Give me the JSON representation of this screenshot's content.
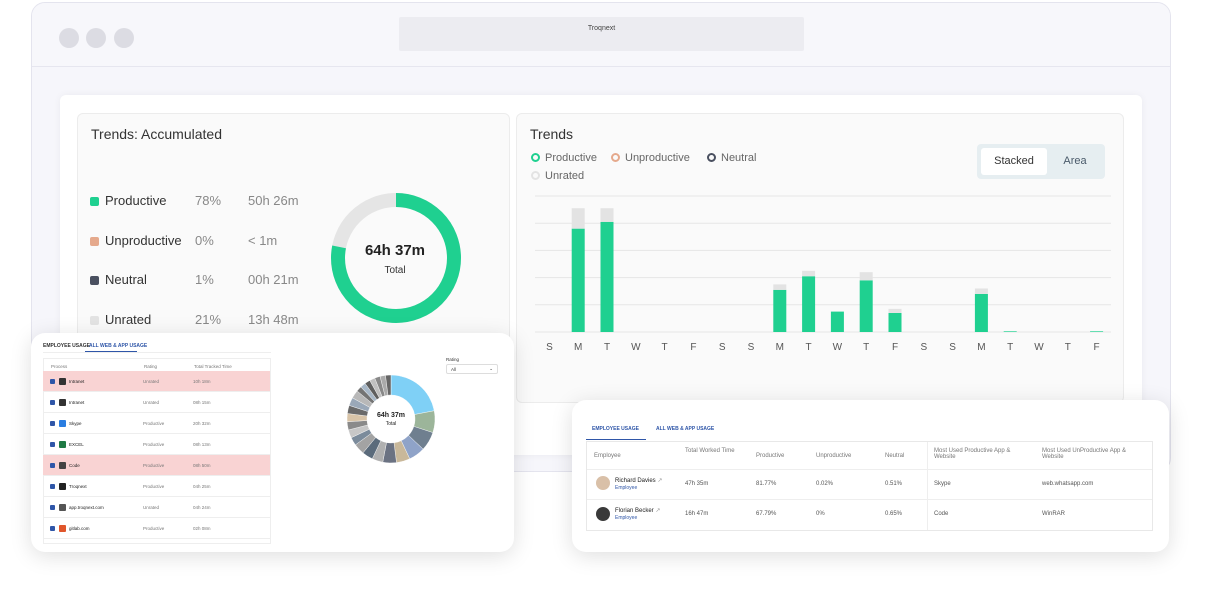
{
  "browser": {
    "title": "Troqnext"
  },
  "accumulated": {
    "title": "Trends: Accumulated",
    "rows": [
      {
        "name": "Productive",
        "pct": "78%",
        "time": "50h 26m",
        "color": "#1fd090"
      },
      {
        "name": "Unproductive",
        "pct": "0%",
        "time": "< 1m",
        "color": "#e5a98c"
      },
      {
        "name": "Neutral",
        "pct": "1%",
        "time": "00h 21m",
        "color": "#4a5060"
      },
      {
        "name": "Unrated",
        "pct": "21%",
        "time": "13h 48m",
        "color": "#e3e3e3"
      }
    ],
    "total_time": "64h 37m",
    "total_label": "Total"
  },
  "trends": {
    "title": "Trends",
    "legend": [
      {
        "name": "Productive",
        "color": "#1fd090"
      },
      {
        "name": "Unproductive",
        "color": "#e5a98c"
      },
      {
        "name": "Neutral",
        "color": "#4a5060"
      },
      {
        "name": "Unrated",
        "color": "#e3e3e3"
      }
    ],
    "toggle": {
      "stacked": "Stacked",
      "area": "Area"
    }
  },
  "chart_data": {
    "type": "bar",
    "stacked": true,
    "categories": [
      "S",
      "M",
      "T",
      "W",
      "T",
      "F",
      "S",
      "S",
      "M",
      "T",
      "W",
      "T",
      "F",
      "S",
      "S",
      "M",
      "T",
      "W",
      "T",
      "F"
    ],
    "series": [
      {
        "name": "Productive",
        "color": "#1fd090",
        "values": [
          0,
          7.6,
          8.1,
          0,
          0,
          0,
          0,
          0,
          3.1,
          4.1,
          1.5,
          3.8,
          1.4,
          0,
          0,
          2.8,
          0.05,
          0,
          0,
          0.05
        ]
      },
      {
        "name": "Unrated",
        "color": "#e3e3e3",
        "values": [
          0,
          1.5,
          1.0,
          0,
          0,
          0,
          0,
          0,
          0.4,
          0.4,
          0,
          0.6,
          0.3,
          0,
          0,
          0.4,
          0,
          0,
          0,
          0
        ]
      }
    ],
    "ylim": [
      0,
      10
    ],
    "grid": true
  },
  "process_panel": {
    "tabs": [
      "EMPLOYEE USAGE",
      "ALL WEB & APP USAGE"
    ],
    "headers": [
      "Process",
      "Rating",
      "Total Tracked Time"
    ],
    "rows": [
      {
        "name": "Intranet",
        "rating": "Unrated",
        "time": "10h 18m",
        "highlight": true
      },
      {
        "name": "Intranet",
        "rating": "Unrated",
        "time": "08h 15m",
        "highlight": false
      },
      {
        "name": "Skype",
        "rating": "Productive",
        "time": "20h 32m",
        "highlight": false
      },
      {
        "name": "EXCEL",
        "rating": "Productive",
        "time": "08h 13m",
        "highlight": false
      },
      {
        "name": "Code",
        "rating": "Productive",
        "time": "08h 50m",
        "highlight": true
      },
      {
        "name": "Troqnext",
        "rating": "Productive",
        "time": "04h 25m",
        "highlight": false
      },
      {
        "name": "app.troqnext.com",
        "rating": "Unrated",
        "time": "04h 24m",
        "highlight": false
      },
      {
        "name": "gitlab.com",
        "rating": "Productive",
        "time": "02h 08m",
        "highlight": false
      }
    ],
    "rating_label": "Rating",
    "rating_value": "All",
    "donut_time": "64h 37m",
    "donut_label": "Total"
  },
  "employee_panel": {
    "tabs": [
      "EMPLOYEE USAGE",
      "ALL WEB & APP USAGE"
    ],
    "headers": [
      "Employee",
      "Total Worked Time",
      "Productive",
      "Unproductive",
      "Neutral",
      "Most Used Productive App & Website",
      "Most Used UnProductive App & Website"
    ],
    "rows": [
      {
        "name": "Richard Davies",
        "role": "Employee",
        "worked": "47h 35m",
        "productive": "81.77%",
        "unproductive": "0.02%",
        "neutral": "0.51%",
        "prod_app": "Skype",
        "unprod_app": "web.whatsapp.com"
      },
      {
        "name": "Florian Becker",
        "role": "Employee",
        "worked": "16h 47m",
        "productive": "67.79%",
        "unproductive": "0%",
        "neutral": "0.65%",
        "prod_app": "Code",
        "unprod_app": "WinRAR"
      }
    ]
  }
}
